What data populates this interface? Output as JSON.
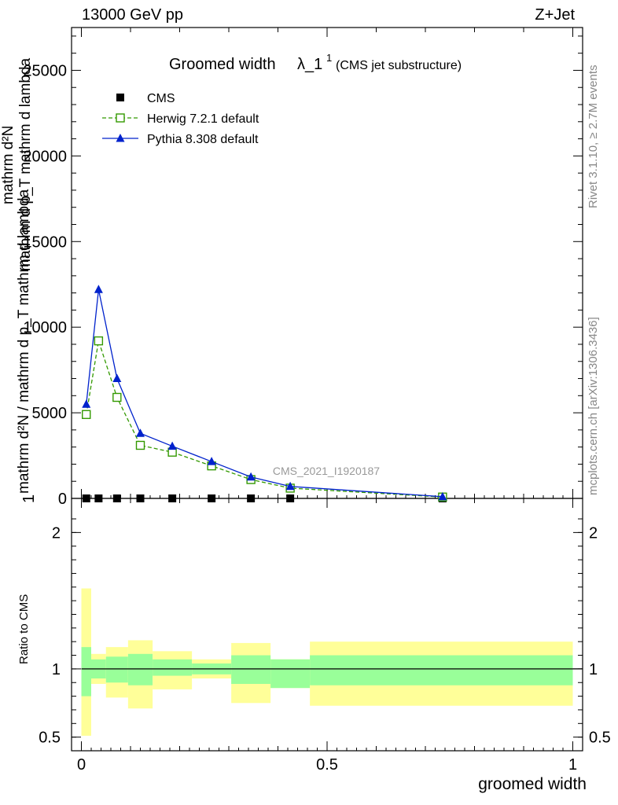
{
  "header": {
    "energy": "13000 GeV pp",
    "process": "Z+Jet"
  },
  "side_labels": {
    "rivet": "Rivet 3.1.10, ≥ 2.7M events",
    "mcplots": "mcplots.cern.ch [arXiv:1306.3436]"
  },
  "chart_data": [
    {
      "type": "line",
      "title": "Groomed width",
      "title_symbol": "λ_1",
      "title_superscript": "1",
      "subtitle": "(CMS jet substructure)",
      "watermark": "CMS_2021_I1920187",
      "xlabel": "groomed width",
      "ylabel_lines": [
        "1",
        "mathrm d²N / mathrm d p_T mathrm d lambda",
        "mathrm d²N",
        "mathrm d p_T mathrm d lambda"
      ],
      "xlim": [
        -0.02,
        1.02
      ],
      "ylim": [
        0,
        27500
      ],
      "yticks": [
        0,
        5000,
        10000,
        15000,
        20000,
        25000
      ],
      "ytick_labels": [
        "0",
        "5000",
        "10000",
        "15000",
        "20000",
        "25000"
      ],
      "legend_position": "top-left",
      "series": [
        {
          "name": "CMS",
          "color": "#000000",
          "marker": "square-filled",
          "x": [
            0.01,
            0.035,
            0.0725,
            0.12,
            0.185,
            0.265,
            0.345,
            0.425,
            0.735
          ],
          "y": [
            0,
            0,
            0,
            0,
            0,
            0,
            0,
            0,
            0
          ]
        },
        {
          "name": "Herwig 7.2.1 default",
          "color": "#339900",
          "marker": "square-open",
          "line": "dashed",
          "x": [
            0.01,
            0.035,
            0.0725,
            0.12,
            0.185,
            0.265,
            0.345,
            0.425,
            0.735
          ],
          "y": [
            4900,
            9200,
            5900,
            3100,
            2700,
            1900,
            1100,
            600,
            80
          ]
        },
        {
          "name": "Pythia 8.308 default",
          "color": "#0022cc",
          "marker": "triangle-filled",
          "line": "solid",
          "x": [
            0.01,
            0.035,
            0.0725,
            0.12,
            0.185,
            0.265,
            0.345,
            0.425,
            0.735
          ],
          "y": [
            5500,
            12200,
            7000,
            3800,
            3050,
            2150,
            1250,
            700,
            100
          ]
        }
      ]
    },
    {
      "type": "area",
      "ylabel": "Ratio to CMS",
      "xlim": [
        -0.02,
        1.02
      ],
      "ylim": [
        0.4,
        2.25
      ],
      "yticks": [
        0.5,
        1,
        2
      ],
      "ytick_labels": [
        "0.5",
        "1",
        "2"
      ],
      "xticks": [
        0,
        0.5,
        1
      ],
      "xtick_labels": [
        "0",
        "0.5",
        "1"
      ],
      "bins": [
        {
          "lo": 0.0,
          "hi": 0.02,
          "inner": [
            0.8,
            1.16
          ],
          "outer": [
            0.51,
            1.59
          ]
        },
        {
          "lo": 0.02,
          "hi": 0.05,
          "inner": [
            0.93,
            1.07
          ],
          "outer": [
            0.89,
            1.11
          ]
        },
        {
          "lo": 0.05,
          "hi": 0.095,
          "inner": [
            0.9,
            1.09
          ],
          "outer": [
            0.79,
            1.16
          ]
        },
        {
          "lo": 0.095,
          "hi": 0.145,
          "inner": [
            0.88,
            1.11
          ],
          "outer": [
            0.71,
            1.21
          ]
        },
        {
          "lo": 0.145,
          "hi": 0.225,
          "inner": [
            0.95,
            1.07
          ],
          "outer": [
            0.85,
            1.13
          ]
        },
        {
          "lo": 0.225,
          "hi": 0.305,
          "inner": [
            0.96,
            1.04
          ],
          "outer": [
            0.93,
            1.07
          ]
        },
        {
          "lo": 0.305,
          "hi": 0.385,
          "inner": [
            0.89,
            1.1
          ],
          "outer": [
            0.75,
            1.19
          ]
        },
        {
          "lo": 0.385,
          "hi": 0.465,
          "inner": [
            0.86,
            1.07
          ],
          "outer": [
            0.86,
            1.07
          ]
        },
        {
          "lo": 0.465,
          "hi": 1.0,
          "inner": [
            0.88,
            1.1
          ],
          "outer": [
            0.73,
            1.2
          ]
        }
      ],
      "band_colors": {
        "inner": "#99ff99",
        "outer": "#ffff99"
      },
      "reference_line": 1
    }
  ]
}
